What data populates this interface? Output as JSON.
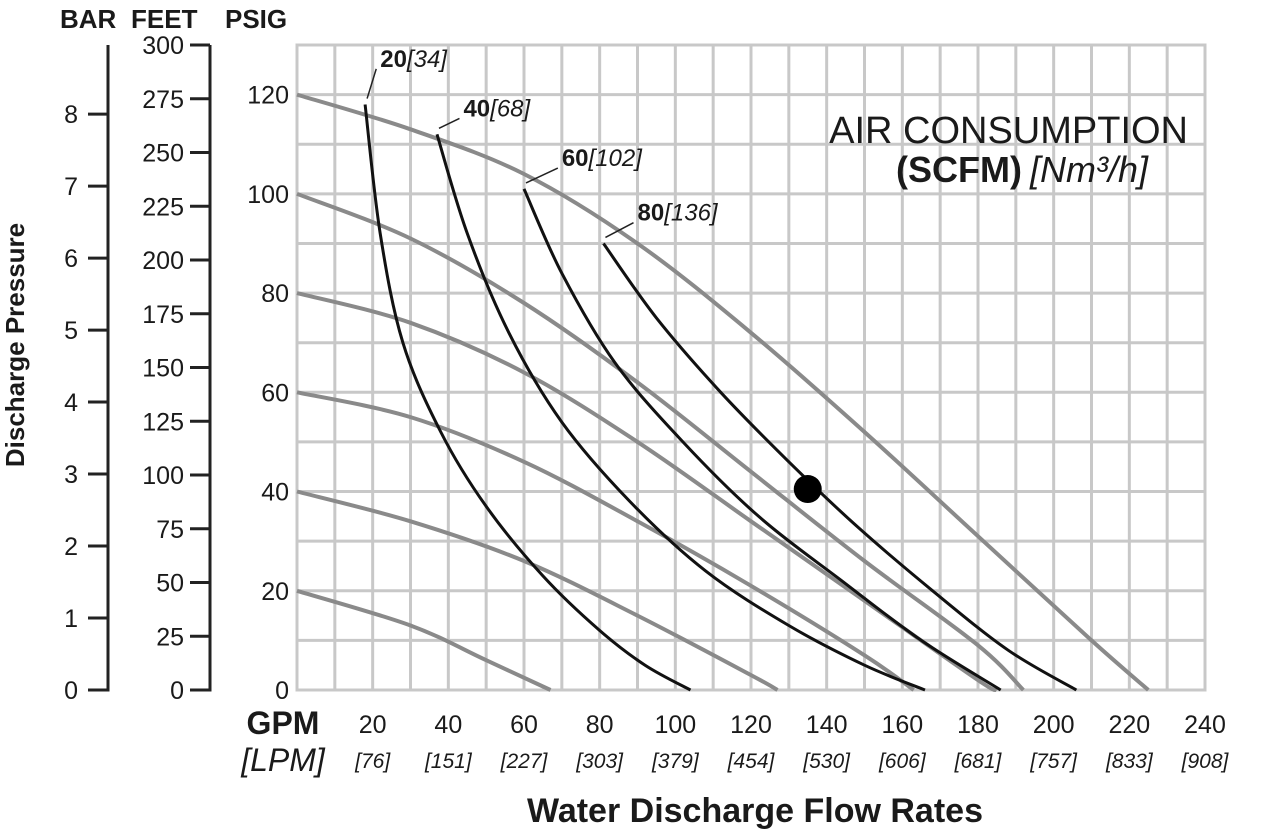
{
  "chart_data": {
    "type": "line",
    "x_axis": {
      "unit_primary": "GPM",
      "unit_secondary": "[LPM]",
      "title": "Water Discharge Flow Rates",
      "range": [
        0,
        240
      ],
      "ticks": [
        20,
        40,
        60,
        80,
        100,
        120,
        140,
        160,
        180,
        200,
        220,
        240
      ],
      "secondary_ticks": [
        "[76]",
        "[151]",
        "[227]",
        "[303]",
        "[379]",
        "[454]",
        "[530]",
        "[606]",
        "[681]",
        "[757]",
        "[833]",
        "[908]"
      ]
    },
    "y_axis_psig": {
      "unit": "PSIG",
      "range": [
        0,
        130
      ],
      "ticks": [
        0,
        20,
        40,
        60,
        80,
        100,
        120
      ]
    },
    "y_axis_feet": {
      "unit": "FEET",
      "range": [
        0,
        300
      ],
      "ticks": [
        0,
        25,
        50,
        75,
        100,
        125,
        150,
        175,
        200,
        225,
        250,
        275,
        300
      ]
    },
    "y_axis_bar": {
      "unit": "BAR",
      "range": [
        0,
        8.96
      ],
      "ticks": [
        0,
        1,
        2,
        3,
        4,
        5,
        6,
        7,
        8
      ]
    },
    "y_title": "Discharge Pressure",
    "legend": {
      "line1": "AIR CONSUMPTION",
      "line2_bold": "(SCFM)",
      "line2_italic": "[Nm³/h]"
    },
    "pump_curves": [
      {
        "points": [
          [
            0,
            120
          ],
          [
            30,
            113
          ],
          [
            60,
            104
          ],
          [
            90,
            90
          ],
          [
            120,
            72
          ],
          [
            150,
            52
          ],
          [
            180,
            31
          ],
          [
            210,
            10
          ],
          [
            225,
            0
          ]
        ]
      },
      {
        "points": [
          [
            0,
            100
          ],
          [
            30,
            91
          ],
          [
            60,
            78
          ],
          [
            90,
            62
          ],
          [
            120,
            44
          ],
          [
            150,
            26
          ],
          [
            180,
            9
          ],
          [
            192,
            0
          ]
        ]
      },
      {
        "points": [
          [
            0,
            80
          ],
          [
            30,
            74
          ],
          [
            60,
            64
          ],
          [
            90,
            50
          ],
          [
            120,
            34
          ],
          [
            150,
            18
          ],
          [
            180,
            2
          ],
          [
            185,
            0
          ]
        ]
      },
      {
        "points": [
          [
            0,
            60
          ],
          [
            30,
            55
          ],
          [
            60,
            46
          ],
          [
            90,
            34
          ],
          [
            120,
            21
          ],
          [
            150,
            7
          ],
          [
            163,
            0
          ]
        ]
      },
      {
        "points": [
          [
            0,
            40
          ],
          [
            30,
            34
          ],
          [
            60,
            26
          ],
          [
            90,
            15
          ],
          [
            120,
            3
          ],
          [
            127,
            0
          ]
        ]
      },
      {
        "points": [
          [
            0,
            20
          ],
          [
            30,
            13
          ],
          [
            50,
            6
          ],
          [
            67,
            0
          ]
        ]
      }
    ],
    "air_curves": [
      {
        "label_bold": "20",
        "label_italic": "[34]",
        "label_at": [
          22,
          126
        ],
        "points": [
          [
            18,
            118
          ],
          [
            22,
            92
          ],
          [
            28,
            70
          ],
          [
            38,
            52
          ],
          [
            50,
            37
          ],
          [
            65,
            23
          ],
          [
            80,
            12
          ],
          [
            92,
            5
          ],
          [
            104,
            0
          ]
        ]
      },
      {
        "label_bold": "40",
        "label_italic": "[68]",
        "label_at": [
          44,
          116
        ],
        "points": [
          [
            37,
            112
          ],
          [
            45,
            92
          ],
          [
            56,
            72
          ],
          [
            70,
            54
          ],
          [
            88,
            38
          ],
          [
            108,
            24
          ],
          [
            130,
            13
          ],
          [
            150,
            5
          ],
          [
            166,
            0
          ]
        ]
      },
      {
        "label_bold": "60",
        "label_italic": "[102]",
        "label_at": [
          70,
          106
        ],
        "points": [
          [
            60,
            101
          ],
          [
            70,
            84
          ],
          [
            84,
            66
          ],
          [
            102,
            50
          ],
          [
            122,
            35
          ],
          [
            144,
            22
          ],
          [
            165,
            10
          ],
          [
            186,
            0
          ]
        ]
      },
      {
        "label_bold": "80",
        "label_italic": "[136]",
        "label_at": [
          90,
          95
        ],
        "points": [
          [
            81,
            90
          ],
          [
            95,
            75
          ],
          [
            112,
            60
          ],
          [
            130,
            46
          ],
          [
            148,
            33
          ],
          [
            168,
            20
          ],
          [
            188,
            8
          ],
          [
            206,
            0
          ]
        ]
      }
    ],
    "operating_point": {
      "x": 135,
      "y": 40.5
    }
  }
}
